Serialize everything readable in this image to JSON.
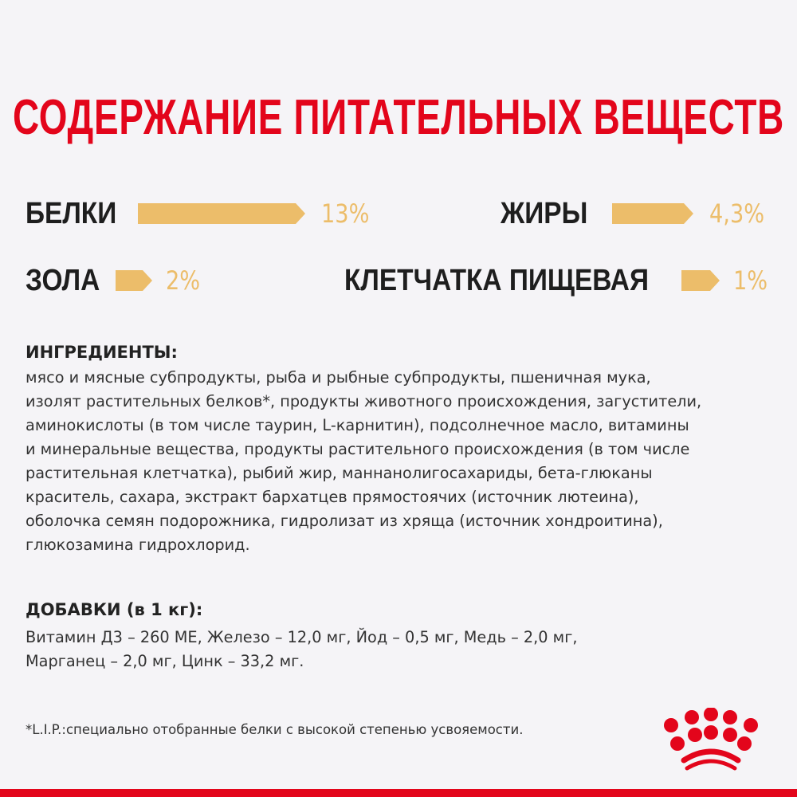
{
  "title": "СОДЕРЖАНИЕ ПИТАТЕЛЬНЫХ ВЕЩЕСТВ",
  "nutrients": [
    {
      "label": "БЕЛКИ",
      "value": "13%",
      "percent": 13
    },
    {
      "label": "ЖИРЫ",
      "value": "4,3%",
      "percent": 4.3
    },
    {
      "label": "ЗОЛА",
      "value": "2%",
      "percent": 2
    },
    {
      "label": "КЛЕТЧАТКА ПИЩЕВАЯ",
      "value": "1%",
      "percent": 1
    }
  ],
  "ingredients": {
    "heading": "ИНГРЕДИЕНТЫ:",
    "lines": [
      "мясо и мясные субпродукты, рыба и рыбные субпродукты, пшеничная мука,",
      "изолят растительных белков*, продукты животного происхождения, загустители,",
      "аминокислоты (в том числе таурин, L-карнитин), подсолнечное масло, витамины",
      "и минеральные вещества, продукты растительного происхождения (в том числе",
      "растительная клетчатка), рыбий жир, маннанолигосахариды, бета-глюканы",
      "краситель, сахара, экстракт бархатцев прямостоячих (источник лютеина),",
      "оболочка семян подорожника, гидролизат из хряща (источник хондроитина),",
      "глюкозамина гидрохлорид."
    ]
  },
  "additives": {
    "heading": "ДОБАВКИ (в 1 кг):",
    "lines": [
      "Витамин Д3 – 260 МЕ, Железо – 12,0 мг, Йод – 0,5 мг, Медь – 2,0 мг,",
      "Марганец – 2,0 мг, Цинк – 33,2 мг."
    ]
  },
  "footnote": "*L.I.P.:специально отобранные белки с высокой степенью усвояемости.",
  "colors": {
    "brand_red": "#e3051b",
    "bar_gold": "#ecbd6a",
    "background": "#f5f4f7"
  },
  "logo": {
    "icon": "royal-canin-crown-icon"
  }
}
